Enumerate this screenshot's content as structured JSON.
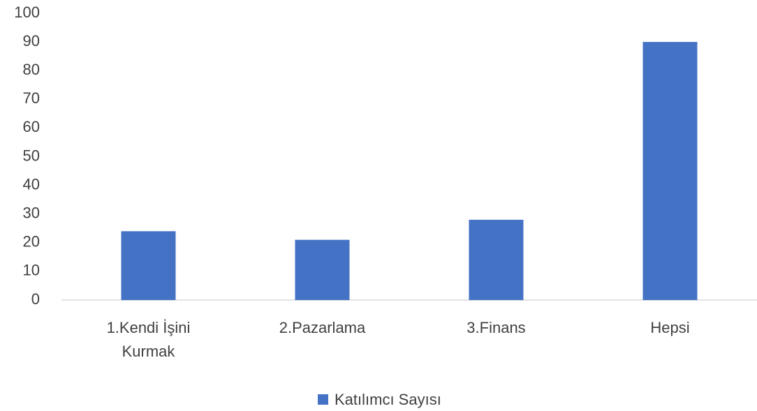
{
  "chart_data": {
    "type": "bar",
    "categories": [
      "1.Kendi İşini Kurmak",
      "2.Pazarlama",
      "3.Finans",
      "Hepsi"
    ],
    "series": [
      {
        "name": "Katılımcı Sayısı",
        "color": "#4472c4",
        "values": [
          24,
          21,
          28,
          90
        ]
      }
    ],
    "ylim": [
      0,
      100
    ],
    "yticks": [
      0,
      10,
      20,
      30,
      40,
      50,
      60,
      70,
      80,
      90,
      100
    ],
    "grid": false,
    "legend": "bottom"
  }
}
